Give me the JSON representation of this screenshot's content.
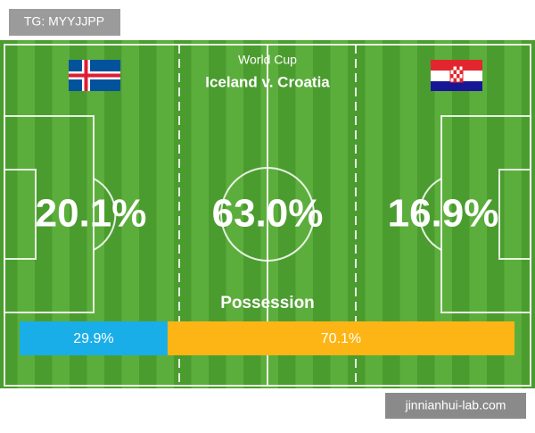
{
  "watermark_top": "TG: MYYJJPP",
  "header": {
    "title": "World Cup",
    "match": "Iceland v. Croatia"
  },
  "stats": [
    "20.1%",
    "63.0%",
    "16.9%"
  ],
  "possession": {
    "title": "Possession",
    "bars": [
      {
        "value": 29.9,
        "label": "29.9%",
        "color": "#1aaee8"
      },
      {
        "value": 70.1,
        "label": "70.1%",
        "color": "#fdb515"
      }
    ]
  },
  "watermark_bottom": "jinnianhui-lab.com"
}
